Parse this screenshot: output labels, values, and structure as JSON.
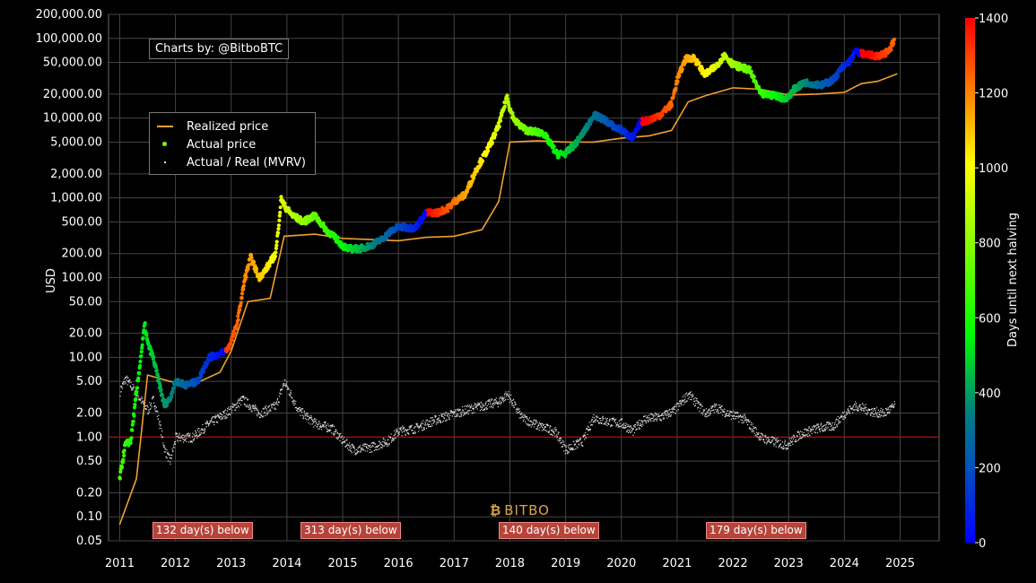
{
  "credit": "Charts by: @BitboBTC",
  "watermark": "BITBO",
  "legend": {
    "realized": "Realized price",
    "actual": "Actual price",
    "mvrv": "Actual / Real (MVRV)"
  },
  "colors": {
    "realized": "#f0a030",
    "mvrv": "#dddddd",
    "reference_line": "#d00000",
    "badge": "#b5443a"
  },
  "below_badges": [
    "132 day(s) below",
    "313 day(s) below",
    "140 day(s) below",
    "179 day(s) below"
  ],
  "colorbar": {
    "label": "Days until next halving",
    "ticks": [
      "0",
      "200",
      "400",
      "600",
      "800",
      "1000",
      "1200",
      "1400"
    ]
  },
  "chart_data": {
    "type": "scatter",
    "ylabel": "USD",
    "yscale": "log",
    "ylim": [
      0.05,
      200000
    ],
    "xlim": [
      2010.8,
      2025.7
    ],
    "grid": true,
    "y_ticks": [
      "0.05",
      "0.10",
      "0.20",
      "0.50",
      "1.00",
      "2.00",
      "5.00",
      "10.00",
      "20.00",
      "50.00",
      "100.00",
      "200.00",
      "500.00",
      "1,000.00",
      "2,000.00",
      "5,000.00",
      "10,000.00",
      "20,000.00",
      "50,000.00",
      "100,000.00",
      "200,000.00"
    ],
    "x_ticks": [
      "2011",
      "2012",
      "2013",
      "2014",
      "2015",
      "2016",
      "2017",
      "2018",
      "2019",
      "2020",
      "2021",
      "2022",
      "2023",
      "2024",
      "2025"
    ],
    "reference_line_y": 1.0,
    "color_scale": "days until next halving (0 = blue, 1400 = red)",
    "series": [
      {
        "name": "Actual price",
        "x": [
          2011.0,
          2011.1,
          2011.2,
          2011.3,
          2011.45,
          2011.5,
          2011.6,
          2011.7,
          2011.8,
          2011.9,
          2012.0,
          2012.2,
          2012.4,
          2012.6,
          2012.8,
          2012.95,
          2013.1,
          2013.25,
          2013.35,
          2013.5,
          2013.6,
          2013.8,
          2013.9,
          2013.95,
          2014.1,
          2014.3,
          2014.5,
          2014.7,
          2014.9,
          2015.0,
          2015.1,
          2015.3,
          2015.5,
          2015.7,
          2015.9,
          2016.0,
          2016.3,
          2016.5,
          2016.7,
          2016.9,
          2017.0,
          2017.2,
          2017.4,
          2017.6,
          2017.8,
          2017.95,
          2018.0,
          2018.1,
          2018.3,
          2018.6,
          2018.85,
          2018.95,
          2019.0,
          2019.2,
          2019.4,
          2019.5,
          2019.7,
          2019.9,
          2020.0,
          2020.2,
          2020.35,
          2020.5,
          2020.7,
          2020.9,
          2021.0,
          2021.15,
          2021.3,
          2021.5,
          2021.7,
          2021.85,
          2022.0,
          2022.3,
          2022.5,
          2022.8,
          2022.95,
          2023.1,
          2023.3,
          2023.6,
          2023.8,
          2023.95,
          2024.1,
          2024.2,
          2024.4,
          2024.6,
          2024.8,
          2024.9
        ],
        "y": [
          0.3,
          0.8,
          0.9,
          3.5,
          26,
          15,
          10,
          5,
          2.5,
          3,
          5,
          4.5,
          5,
          10,
          11,
          13,
          25,
          100,
          180,
          100,
          120,
          200,
          1000,
          800,
          600,
          500,
          600,
          400,
          300,
          250,
          230,
          230,
          250,
          300,
          400,
          430,
          420,
          650,
          650,
          750,
          900,
          1100,
          2300,
          4000,
          8000,
          19000,
          13000,
          9000,
          7000,
          6500,
          3500,
          3600,
          3600,
          5000,
          8000,
          11000,
          9500,
          7500,
          7200,
          5500,
          9000,
          9500,
          11000,
          15000,
          30000,
          55000,
          57000,
          35000,
          45000,
          62000,
          47000,
          40000,
          20000,
          19000,
          17000,
          23000,
          28000,
          26000,
          30000,
          42000,
          52000,
          68000,
          62000,
          60000,
          68000,
          98000
        ],
        "color": "days until next halving"
      },
      {
        "name": "Realized price",
        "x": [
          2011.0,
          2011.3,
          2011.5,
          2011.9,
          2012.3,
          2012.8,
          2013.0,
          2013.3,
          2013.7,
          2013.95,
          2014.5,
          2015.0,
          2015.5,
          2016.0,
          2016.5,
          2017.0,
          2017.5,
          2017.8,
          2018.0,
          2018.5,
          2019.0,
          2019.5,
          2020.0,
          2020.5,
          2020.9,
          2021.2,
          2021.5,
          2022.0,
          2022.5,
          2023.0,
          2023.5,
          2024.0,
          2024.3,
          2024.6,
          2024.95
        ],
        "y": [
          0.08,
          0.3,
          6,
          5,
          4.5,
          6.5,
          12,
          50,
          55,
          330,
          350,
          310,
          300,
          290,
          320,
          330,
          400,
          900,
          5000,
          5200,
          5000,
          5000,
          5600,
          6000,
          7000,
          16000,
          19000,
          24000,
          23000,
          19500,
          20000,
          21000,
          27000,
          29000,
          36000
        ],
        "color": "#f0a030"
      },
      {
        "name": "Actual / Real (MVRV)",
        "x": [
          2011.0,
          2011.1,
          2011.3,
          2011.5,
          2011.6,
          2011.7,
          2011.8,
          2011.9,
          2012.0,
          2012.3,
          2012.6,
          2012.9,
          2013.2,
          2013.5,
          2013.8,
          2013.95,
          2014.2,
          2014.5,
          2014.8,
          2015.0,
          2015.2,
          2015.5,
          2015.8,
          2016.0,
          2016.3,
          2016.6,
          2016.9,
          2017.2,
          2017.5,
          2017.8,
          2017.95,
          2018.2,
          2018.5,
          2018.8,
          2019.0,
          2019.3,
          2019.5,
          2019.7,
          2020.0,
          2020.2,
          2020.4,
          2020.7,
          2020.95,
          2021.2,
          2021.5,
          2021.7,
          2021.9,
          2022.2,
          2022.5,
          2022.8,
          2022.95,
          2023.2,
          2023.5,
          2023.8,
          2024.0,
          2024.2,
          2024.5,
          2024.7,
          2024.9
        ],
        "y": [
          3.8,
          5.5,
          3.5,
          2.2,
          3.0,
          1.6,
          0.7,
          0.5,
          1.0,
          1.0,
          1.5,
          2.0,
          3.0,
          2.0,
          2.5,
          5.0,
          2.2,
          1.5,
          1.3,
          0.9,
          0.7,
          0.75,
          0.9,
          1.2,
          1.3,
          1.6,
          1.9,
          2.2,
          2.5,
          2.8,
          3.5,
          1.8,
          1.4,
          1.2,
          0.7,
          0.9,
          1.8,
          1.6,
          1.5,
          1.2,
          1.7,
          1.8,
          2.2,
          3.5,
          2.0,
          2.4,
          2.0,
          1.7,
          1.0,
          0.85,
          0.8,
          1.1,
          1.3,
          1.4,
          2.0,
          2.5,
          2.1,
          2.0,
          2.5
        ],
        "color": "#dddddd"
      }
    ]
  }
}
